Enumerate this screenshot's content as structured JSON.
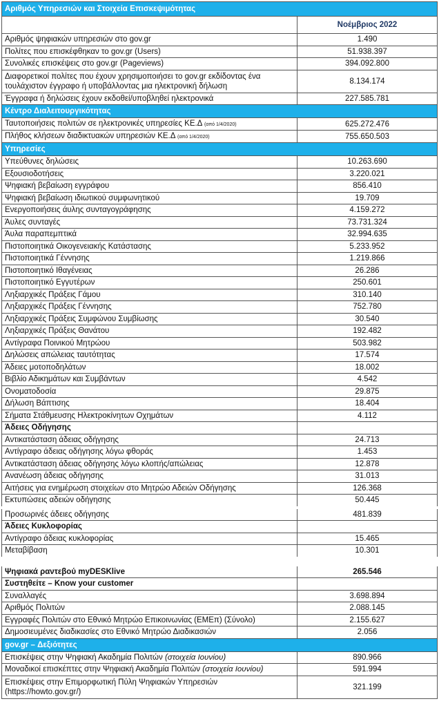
{
  "header": {
    "title": "Αριθμός Υπηρεσιών και Στοιχεία Επισκεψιμότητας",
    "column": "Νοέμβριος 2022"
  },
  "table": {
    "rows": [
      {
        "label": "Αριθμός ψηφιακών υπηρεσιών στο gov.gr",
        "value": "1.490"
      },
      {
        "label": "Πολίτες που επισκέφθηκαν το gov.gr (Users)",
        "value": "51.938.397"
      },
      {
        "label": "Συνολικές επισκέψεις στο gov.gr (Pageviews)",
        "value": "394.092.800"
      },
      {
        "label": "Διαφορετικοί πολίτες που έχουν χρησιμοποιήσει το gov.gr εκδίδοντας ένα τουλάχιστον έγγραφο ή υποβάλλοντας μια ηλεκτρονική δήλωση",
        "value": "8.134.174"
      },
      {
        "label": "Έγγραφα ή δηλώσεις έχουν εκδοθεί/υποβληθεί ηλεκτρονικά",
        "value": "227.585.781"
      },
      {
        "heading": "Κέντρο Διαλειτουργικότητας",
        "style": "section"
      },
      {
        "label": "Ταυτοποιήσεις πολιτών σε ηλεκτρονικές υπηρεσίες ΚΕ.Δ",
        "note": "(από 1/4/2020)",
        "note_style": "small",
        "value": "625.272.476"
      },
      {
        "label": "Πλήθος κλήσεων διαδικτυακών υπηρεσιών ΚΕ.Δ",
        "note": "(από 1/4/2020)",
        "note_style": "small",
        "value": "755.650.503"
      },
      {
        "heading": "Υπηρεσίες",
        "style": "section"
      },
      {
        "label": "Υπεύθυνες δηλώσεις",
        "value": "10.263.690"
      },
      {
        "label": "Εξουσιοδοτήσεις",
        "value": "3.220.021"
      },
      {
        "label": "Ψηφιακή βεβαίωση εγγράφου",
        "value": "856.410"
      },
      {
        "label": "Ψηφιακή βεβαίωση ιδιωτικού συμφωνητικού",
        "value": "19.709"
      },
      {
        "label": "Ενεργοποιήσεις άυλης συνταγογράφησης",
        "value": "4.159.272"
      },
      {
        "label": "Άυλες συνταγές",
        "value": "73.731.324"
      },
      {
        "label": "Άυλα παραπεμπτικά",
        "value": "32.994.635"
      },
      {
        "label": "Πιστοποιητικά Οικογενειακής Κατάστασης",
        "value": "5.233.952"
      },
      {
        "label": "Πιστοποιητικά Γέννησης",
        "value": "1.219.866"
      },
      {
        "label": "Πιστοποιητικό Ιθαγένειας",
        "value": "26.286"
      },
      {
        "label": "Πιστοποιητικό Εγγυτέρων",
        "value": "250.601"
      },
      {
        "label": "Ληξιαρχικές Πράξεις Γάμου",
        "value": "310.140"
      },
      {
        "label": "Ληξιαρχικές Πράξεις Γέννησης",
        "value": "752.780"
      },
      {
        "label": "Ληξιαρχικές Πράξεις Συμφώνου Συμβίωσης",
        "value": "30.540"
      },
      {
        "label": "Ληξιαρχικές Πράξεις Θανάτου",
        "value": "192.482"
      },
      {
        "label": "Αντίγραφα Ποινικού Μητρώου",
        "value": "503.982"
      },
      {
        "label": "Δηλώσεις απώλειας ταυτότητας",
        "value": "17.574"
      },
      {
        "label": "Άδειες μοτοποδηλάτων",
        "value": "18.002"
      },
      {
        "label": "Βιβλίο Αδικημάτων και Συμβάντων",
        "value": "4.542"
      },
      {
        "label": "Ονοματοδοσία",
        "value": "29.875"
      },
      {
        "label": "Δήλωση Βάπτισης",
        "value": "18.404"
      },
      {
        "label": "Σήματα Στάθμευσης Ηλεκτροκίνητων Οχημάτων",
        "value": "4.112"
      },
      {
        "heading": "Άδειες Οδήγησης",
        "style": "subsection"
      },
      {
        "label": "Αντικατάσταση άδειας οδήγησης",
        "value": "24.713"
      },
      {
        "label": "Αντίγραφο άδειας οδήγησης λόγω φθοράς",
        "value": "1.453"
      },
      {
        "label": "Αντικατάσταση άδειας οδήγησης λόγω κλοπής/απώλειας",
        "value": "12.878"
      },
      {
        "label": "Ανανέωση άδειας οδήγησης",
        "value": "31.013"
      },
      {
        "label": "Αιτήσεις για ενημέρωση στοιχείων στο Μητρώο Αδειών Οδήγησης",
        "value": "126.368"
      },
      {
        "label": "Εκτυπώσεις αδειών οδήγησης",
        "value": "50.445"
      },
      {
        "label": "Προσωρινές άδειες οδήγησης",
        "value": "481.839"
      },
      {
        "heading": "Άδειες Κυκλοφορίας",
        "style": "subsection"
      },
      {
        "label": "Αντίγραφο άδειας κυκλοφορίας",
        "value": "15.465"
      },
      {
        "label": "Μεταβίβαση",
        "value": "10.301"
      },
      {
        "label": "Ψηφιακά ραντεβού myDESKlive",
        "value": "265.546",
        "style": "bold"
      },
      {
        "heading": "Συστηθείτε – Know your customer",
        "style": "subsection"
      },
      {
        "label": "Συναλλαγές",
        "value": "3.698.894"
      },
      {
        "label": "Αριθμός Πολιτών",
        "value": "2.088.145"
      },
      {
        "label": "Εγγραφές Πολιτών στο Εθνικό Μητρώο Επικοινωνίας (ΕΜΕπ) (Σύνολο)",
        "value": "2.155.627"
      },
      {
        "label": "Δημοσιευμένες διαδικασίες στο Εθνικό Μητρώο Διαδικασιών",
        "value": "2.056"
      },
      {
        "heading": "gov.gr – Δεξιότητες",
        "style": "section"
      },
      {
        "label": "Επισκέψεις στην Ψηφιακή Ακαδημία Πολιτών",
        "note": "(στοιχεία Ιουνίου)",
        "note_style": "italic",
        "value": "890.966"
      },
      {
        "label": "Μοναδικοί επισκέπτες στην Ψηφιακή Ακαδημία Πολιτών",
        "note": "(στοιχεία Ιουνίου)",
        "note_style": "italic",
        "value": "591.994"
      },
      {
        "label": "Επισκέψεις στην Επιμορφωτική Πύλη Ψηφιακών Υπηρεσιών (https://howto.gov.gr/)",
        "value": "321.199"
      }
    ]
  }
}
